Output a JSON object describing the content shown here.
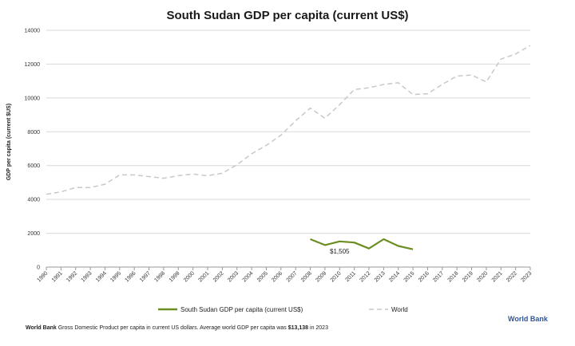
{
  "chart_data": {
    "type": "line",
    "title": "South Sudan GDP per capita (current US$)",
    "ylabel": "GDP per capita (current $US)",
    "xlabel": "",
    "ylim": [
      0,
      14000
    ],
    "yticks": [
      "0",
      "2000",
      "4000",
      "6000",
      "8000",
      "10000",
      "12000",
      "14000"
    ],
    "x": [
      "1990",
      "1991",
      "1992",
      "1993",
      "1994",
      "1995",
      "1996",
      "1997",
      "1998",
      "1999",
      "2000",
      "2001",
      "2002",
      "2003",
      "2004",
      "2005",
      "2006",
      "2007",
      "2008",
      "2009",
      "2010",
      "2011",
      "2012",
      "2013",
      "2014",
      "2015",
      "2016",
      "2017",
      "2018",
      "2019",
      "2020",
      "2021",
      "2022",
      "2023"
    ],
    "grid": true,
    "legend_position": "bottom",
    "series": [
      {
        "name": "South Sudan GDP per capita (current US$)",
        "color": "#6b8e23",
        "style": "solid",
        "values": [
          null,
          null,
          null,
          null,
          null,
          null,
          null,
          null,
          null,
          null,
          null,
          null,
          null,
          null,
          null,
          null,
          null,
          null,
          1650,
          1300,
          1520,
          1450,
          1100,
          1650,
          1250,
          1050,
          null,
          null,
          null,
          null,
          null,
          null,
          null,
          null
        ]
      },
      {
        "name": "World",
        "color": "#c8c8c8",
        "style": "dashed",
        "values": [
          4300,
          4450,
          4700,
          4700,
          4900,
          5450,
          5450,
          5350,
          5250,
          5400,
          5500,
          5400,
          5550,
          6050,
          6700,
          7200,
          7800,
          8650,
          9400,
          8800,
          9600,
          10500,
          10600,
          10800,
          10900,
          10200,
          10250,
          10800,
          11300,
          11350,
          10950,
          12300,
          12600,
          13100
        ]
      }
    ],
    "annotations": [
      {
        "text": "$1,505",
        "x": "2010",
        "y": 1505
      }
    ]
  },
  "footnote": {
    "source_bold": "World Bank",
    "text_a": "  Gross Domestic Product per capita in current US dollars.   Average world GDP per capita was ",
    "value_bold": "$13,138",
    "text_b": " in 2023"
  },
  "source_logo": "World Bank"
}
